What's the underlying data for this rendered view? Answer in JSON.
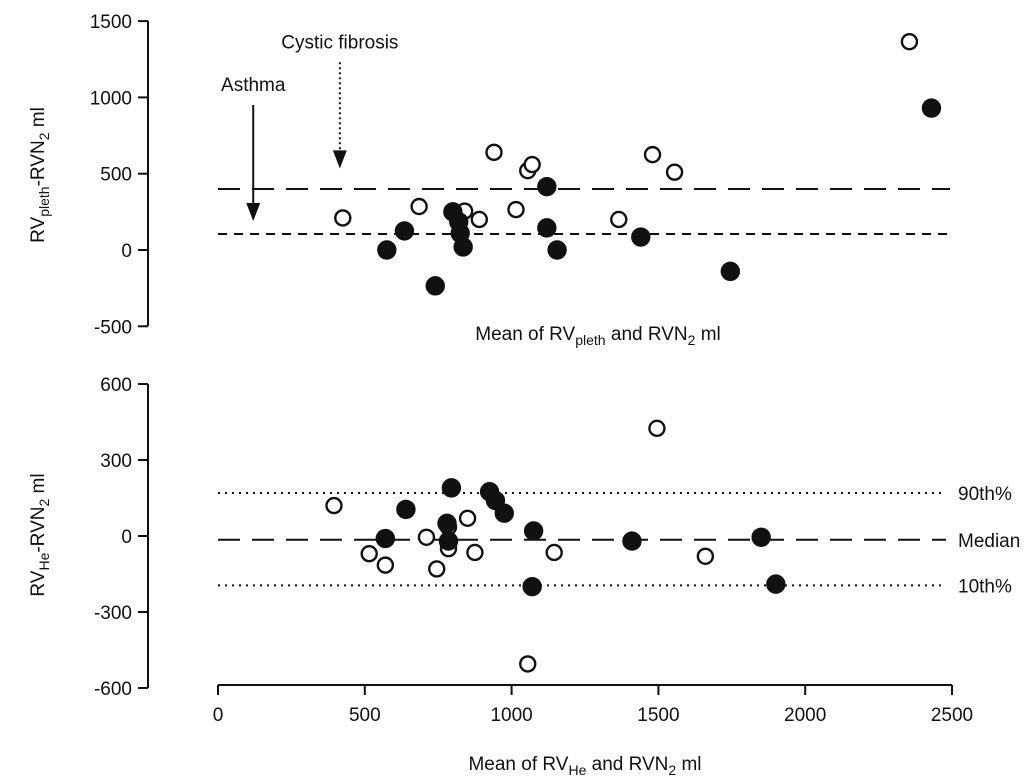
{
  "chart_data": [
    {
      "type": "scatter",
      "title": "",
      "ylabel": {
        "base": "RV",
        "sub1": "pleth",
        "mid": "-RVN",
        "sub2": "2",
        "tail": " ml"
      },
      "xlabel": {
        "base": "Mean of RV",
        "sub1": "pleth",
        "mid": " and RVN",
        "sub2": "2",
        "tail": "  ml"
      },
      "ylim": [
        -500,
        1500
      ],
      "yticks": [
        1500,
        1000,
        500,
        0,
        -500
      ],
      "ytick_labels": [
        "1500",
        "1000",
        "500",
        "0",
        "-500"
      ],
      "annotations": [
        {
          "text": "Asthma",
          "arrow_x": 120,
          "arrow_from_y": 950,
          "arrow_to_y": 190
        },
        {
          "text": "Cystic fibrosis",
          "arrow_x": 415,
          "arrow_from_y": 1230,
          "arrow_to_y": 535
        }
      ],
      "lines": [
        {
          "y": 400,
          "style": "long-dash"
        },
        {
          "y": 105,
          "style": "short-dash"
        }
      ],
      "series": [
        {
          "marker": "open-circle",
          "points": [
            [
              425,
              210
            ],
            [
              685,
              285
            ],
            [
              840,
              255
            ],
            [
              890,
              200
            ],
            [
              940,
              640
            ],
            [
              1015,
              265
            ],
            [
              1055,
              520
            ],
            [
              1070,
              560
            ],
            [
              1365,
              200
            ],
            [
              1480,
              625
            ],
            [
              1555,
              510
            ],
            [
              2355,
              1365
            ]
          ]
        },
        {
          "marker": "filled-circle",
          "points": [
            [
              575,
              0
            ],
            [
              635,
              125
            ],
            [
              740,
              -235
            ],
            [
              800,
              250
            ],
            [
              820,
              185
            ],
            [
              825,
              110
            ],
            [
              835,
              20
            ],
            [
              1120,
              415
            ],
            [
              1120,
              145
            ],
            [
              1155,
              0
            ],
            [
              1440,
              85
            ],
            [
              1745,
              -140
            ],
            [
              2430,
              930
            ]
          ]
        }
      ]
    },
    {
      "type": "scatter",
      "title": "",
      "ylabel": {
        "base": "RV",
        "sub1": "He",
        "mid": "-RVN",
        "sub2": "2",
        "tail": " ml"
      },
      "xlabel": {
        "base": "Mean of RV",
        "sub1": "He",
        "mid": " and RVN",
        "sub2": "2",
        "tail": "  ml"
      },
      "xlim": [
        0,
        2500
      ],
      "ylim": [
        -600,
        600
      ],
      "xticks": [
        0,
        500,
        1000,
        1500,
        2000,
        2500
      ],
      "xtick_labels": [
        "0",
        "500",
        "1000",
        "1500",
        "2000",
        "2500"
      ],
      "yticks": [
        600,
        300,
        0,
        -300,
        -600
      ],
      "ytick_labels": [
        "600",
        "300",
        "0",
        "-300",
        "-600"
      ],
      "lines": [
        {
          "y": 170,
          "style": "dotted",
          "label": "90th%"
        },
        {
          "y": -15,
          "style": "long-dash",
          "label": "Median"
        },
        {
          "y": -195,
          "style": "dotted",
          "label": "10th%"
        }
      ],
      "series": [
        {
          "marker": "open-circle",
          "points": [
            [
              395,
              120
            ],
            [
              515,
              -70
            ],
            [
              570,
              -115
            ],
            [
              710,
              -5
            ],
            [
              745,
              -130
            ],
            [
              785,
              -50
            ],
            [
              785,
              35
            ],
            [
              850,
              70
            ],
            [
              875,
              -65
            ],
            [
              1055,
              -505
            ],
            [
              1145,
              -65
            ],
            [
              1495,
              425
            ],
            [
              1660,
              -80
            ]
          ]
        },
        {
          "marker": "filled-circle",
          "points": [
            [
              570,
              -10
            ],
            [
              640,
              105
            ],
            [
              780,
              50
            ],
            [
              785,
              -20
            ],
            [
              795,
              190
            ],
            [
              925,
              175
            ],
            [
              945,
              140
            ],
            [
              975,
              90
            ],
            [
              1075,
              20
            ],
            [
              1070,
              -200
            ],
            [
              1410,
              -20
            ],
            [
              1850,
              -5
            ],
            [
              1900,
              -190
            ]
          ]
        }
      ]
    }
  ]
}
